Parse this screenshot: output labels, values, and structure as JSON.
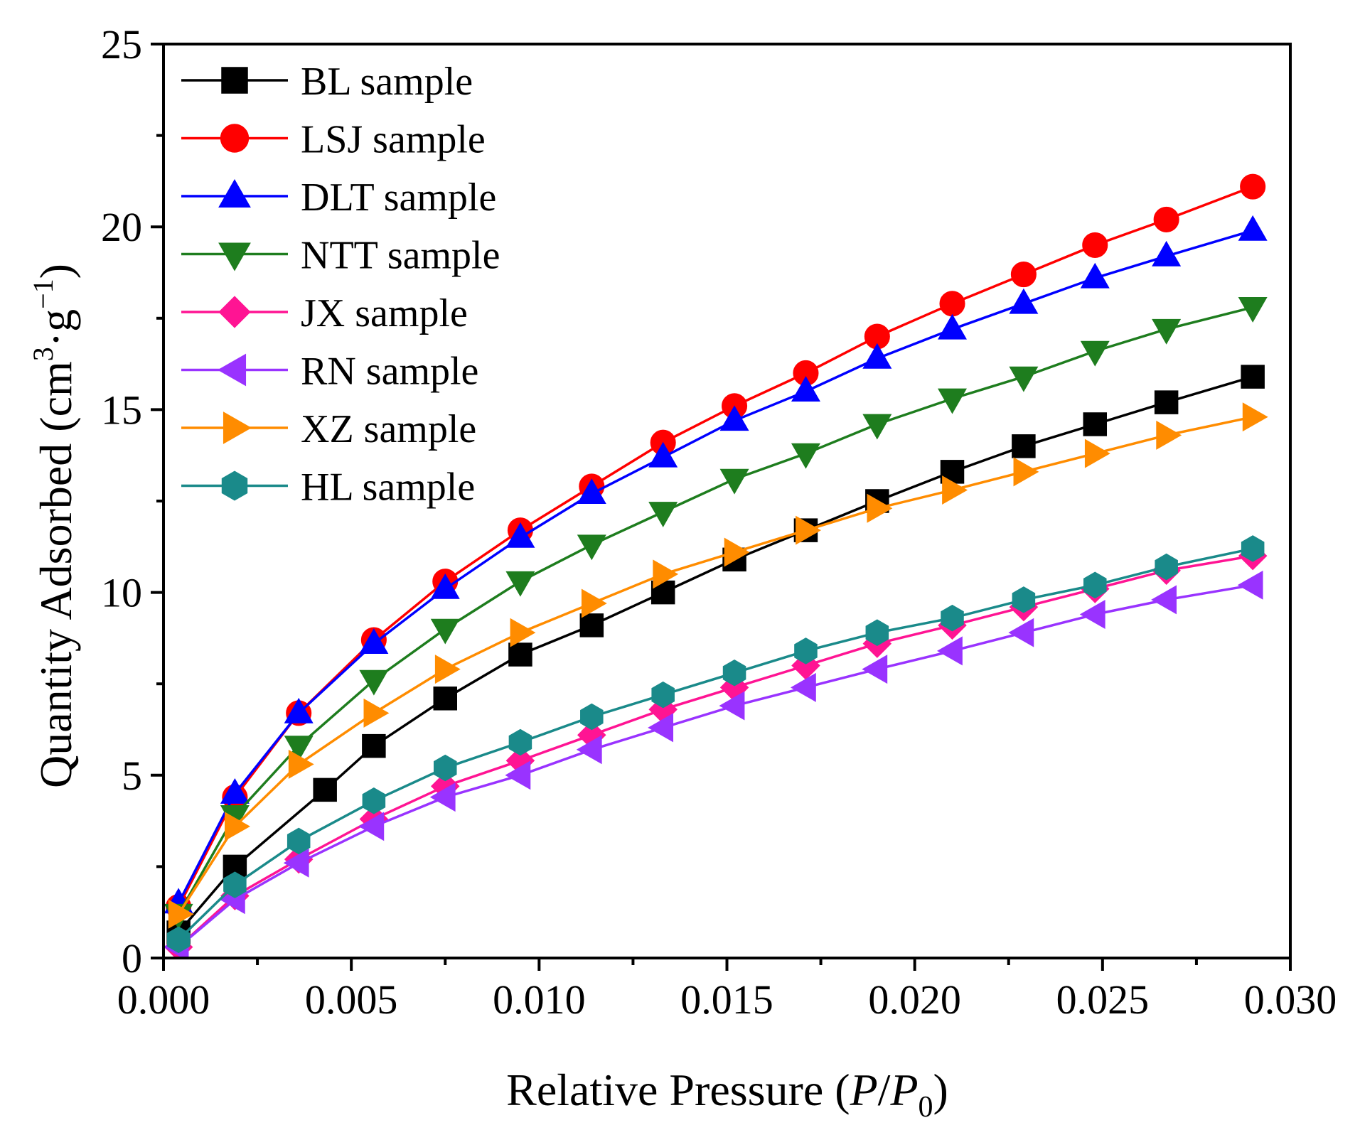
{
  "chart_data": {
    "type": "line",
    "title": "",
    "xlabel": {
      "prefix": "Relative Pressure (",
      "var1": "P",
      "slash": "/",
      "var2": "P",
      "sub": "0",
      "suffix": ")"
    },
    "ylabel": {
      "main": "Quantity Adsorbed (cm",
      "sup1": "3",
      "mid": "·g",
      "sup2": "−1",
      "end": ")"
    },
    "xlim": [
      0,
      0.03
    ],
    "ylim": [
      0,
      25
    ],
    "xticks": [
      0.0,
      0.005,
      0.01,
      0.015,
      0.02,
      0.025,
      0.03
    ],
    "xtick_labels": [
      "0.000",
      "0.005",
      "0.010",
      "0.015",
      "0.020",
      "0.025",
      "0.030"
    ],
    "yticks": [
      0,
      5,
      10,
      15,
      20,
      25
    ],
    "ytick_labels": [
      "0",
      "5",
      "10",
      "15",
      "20",
      "25"
    ],
    "legend_position": "top-left",
    "series": [
      {
        "name": "BL sample",
        "color": "#000000",
        "marker": "square",
        "x": [
          0.0004,
          0.0019,
          0.0043,
          0.0056,
          0.0075,
          0.0095,
          0.0114,
          0.0133,
          0.0152,
          0.0171,
          0.019,
          0.021,
          0.0229,
          0.0248,
          0.0267,
          0.029
        ],
        "y": [
          0.7,
          2.5,
          4.6,
          5.8,
          7.1,
          8.3,
          9.1,
          10.0,
          10.9,
          11.7,
          12.5,
          13.3,
          14.0,
          14.6,
          15.2,
          15.9
        ]
      },
      {
        "name": "LSJ sample",
        "color": "#ff0000",
        "marker": "circle",
        "x": [
          0.0004,
          0.0019,
          0.0036,
          0.0056,
          0.0075,
          0.0095,
          0.0114,
          0.0133,
          0.0152,
          0.0171,
          0.019,
          0.021,
          0.0229,
          0.0248,
          0.0267,
          0.029
        ],
        "y": [
          1.4,
          4.4,
          6.7,
          8.7,
          10.3,
          11.7,
          12.9,
          14.1,
          15.1,
          16.0,
          17.0,
          17.9,
          18.7,
          19.5,
          20.2,
          21.1
        ]
      },
      {
        "name": "DLT sample",
        "color": "#0000ff",
        "marker": "triangle-up",
        "x": [
          0.0004,
          0.0019,
          0.0036,
          0.0056,
          0.0075,
          0.0095,
          0.0114,
          0.0133,
          0.0152,
          0.0171,
          0.019,
          0.021,
          0.0229,
          0.0248,
          0.0267,
          0.029
        ],
        "y": [
          1.5,
          4.5,
          6.7,
          8.6,
          10.1,
          11.5,
          12.7,
          13.7,
          14.7,
          15.5,
          16.4,
          17.2,
          17.9,
          18.6,
          19.2,
          19.9
        ]
      },
      {
        "name": "NTT sample",
        "color": "#1e7d1e",
        "marker": "triangle-down",
        "x": [
          0.0004,
          0.0019,
          0.0036,
          0.0056,
          0.0075,
          0.0095,
          0.0114,
          0.0133,
          0.0152,
          0.0171,
          0.019,
          0.021,
          0.0229,
          0.0248,
          0.0267,
          0.029
        ],
        "y": [
          1.2,
          3.9,
          5.8,
          7.6,
          9.0,
          10.3,
          11.3,
          12.2,
          13.1,
          13.8,
          14.6,
          15.3,
          15.9,
          16.6,
          17.2,
          17.8
        ]
      },
      {
        "name": "JX sample",
        "color": "#ff1493",
        "marker": "diamond",
        "x": [
          0.0004,
          0.0019,
          0.0036,
          0.0056,
          0.0075,
          0.0095,
          0.0114,
          0.0133,
          0.0152,
          0.0171,
          0.019,
          0.021,
          0.0229,
          0.0248,
          0.0267,
          0.029
        ],
        "y": [
          0.3,
          1.7,
          2.7,
          3.8,
          4.7,
          5.4,
          6.1,
          6.8,
          7.4,
          8.0,
          8.6,
          9.1,
          9.6,
          10.1,
          10.6,
          11.0
        ]
      },
      {
        "name": "RN sample",
        "color": "#9933ff",
        "marker": "triangle-left",
        "x": [
          0.0004,
          0.0019,
          0.0036,
          0.0056,
          0.0075,
          0.0095,
          0.0114,
          0.0133,
          0.0152,
          0.0171,
          0.019,
          0.021,
          0.0229,
          0.0248,
          0.0267,
          0.029
        ],
        "y": [
          0.3,
          1.6,
          2.6,
          3.6,
          4.4,
          5.0,
          5.7,
          6.3,
          6.9,
          7.4,
          7.9,
          8.4,
          8.9,
          9.4,
          9.8,
          10.2
        ]
      },
      {
        "name": "XZ sample",
        "color": "#ff8c00",
        "marker": "triangle-right",
        "x": [
          0.0004,
          0.0019,
          0.0036,
          0.0056,
          0.0075,
          0.0095,
          0.0114,
          0.0133,
          0.0152,
          0.0171,
          0.019,
          0.021,
          0.0229,
          0.0248,
          0.0267,
          0.029
        ],
        "y": [
          1.2,
          3.6,
          5.3,
          6.7,
          7.9,
          8.9,
          9.7,
          10.5,
          11.1,
          11.7,
          12.3,
          12.8,
          13.3,
          13.8,
          14.3,
          14.8
        ]
      },
      {
        "name": "HL sample",
        "color": "#1a8a8a",
        "marker": "hexagon",
        "x": [
          0.0004,
          0.0019,
          0.0036,
          0.0056,
          0.0075,
          0.0095,
          0.0114,
          0.0133,
          0.0152,
          0.0171,
          0.019,
          0.021,
          0.0229,
          0.0248,
          0.0267,
          0.029
        ],
        "y": [
          0.5,
          2.0,
          3.2,
          4.3,
          5.2,
          5.9,
          6.6,
          7.2,
          7.8,
          8.4,
          8.9,
          9.3,
          9.8,
          10.2,
          10.7,
          11.2
        ]
      }
    ]
  }
}
